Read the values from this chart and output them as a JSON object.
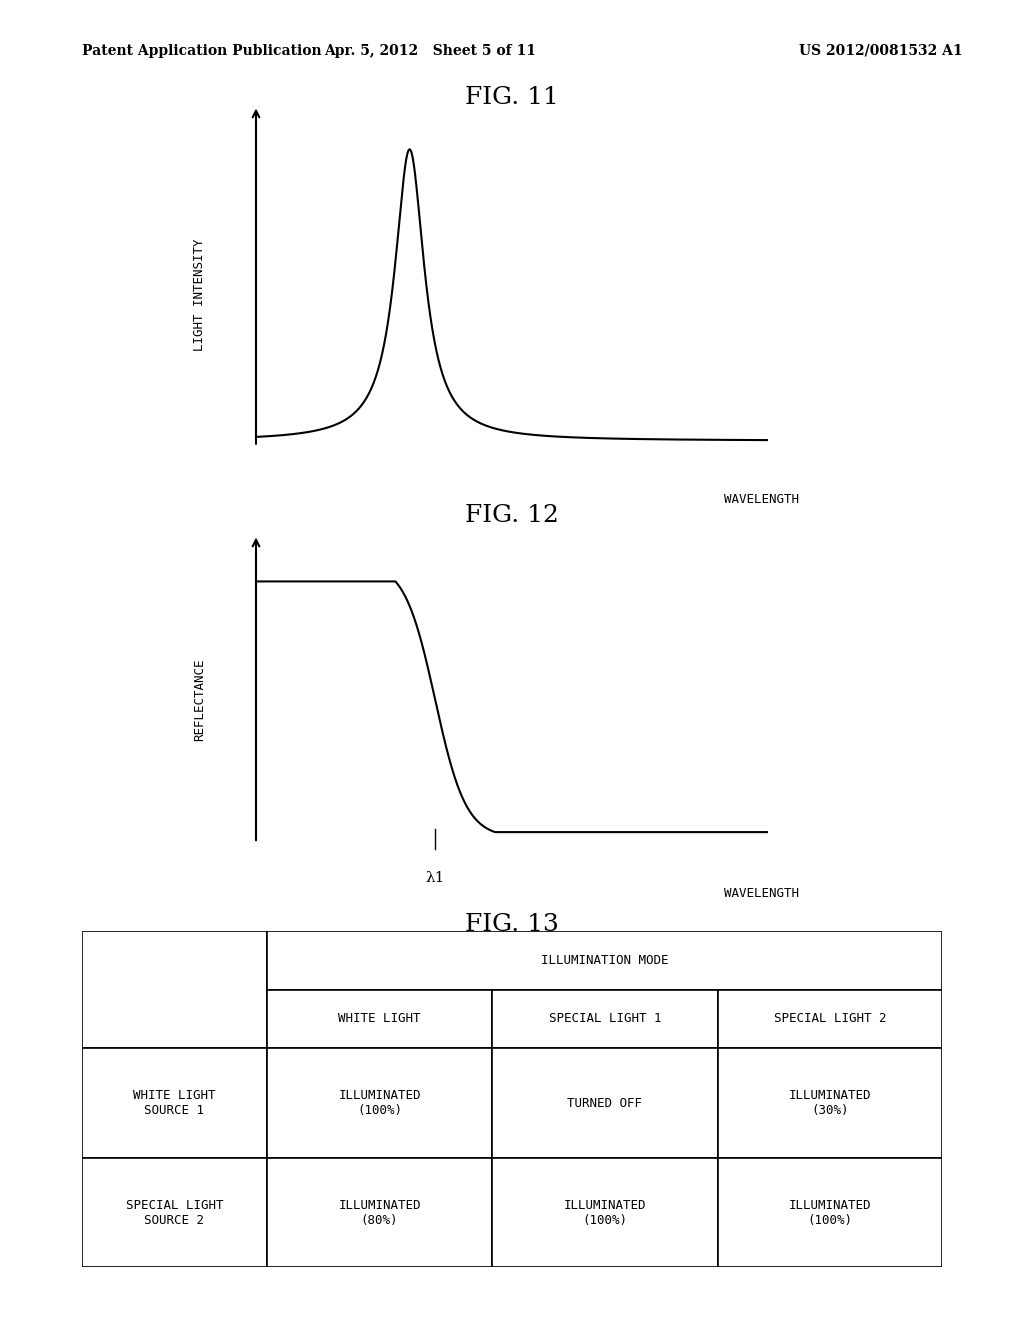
{
  "background_color": "#ffffff",
  "page_header_left": "Patent Application Publication",
  "page_header_center": "Apr. 5, 2012   Sheet 5 of 11",
  "page_header_right": "US 2012/0081532 A1",
  "fig11_title": "FIG. 11",
  "fig11_ylabel": "LIGHT INTENSITY",
  "fig11_xlabel": "WAVELENGTH",
  "fig12_title": "FIG. 12",
  "fig12_ylabel": "REFLECTANCE",
  "fig12_xlabel": "WAVELENGTH",
  "fig12_lambda_label": "λ1",
  "fig13_title": "FIG. 13",
  "table_header_merged": "ILLUMINATION MODE",
  "table_col_headers": [
    "WHITE LIGHT",
    "SPECIAL LIGHT 1",
    "SPECIAL LIGHT 2"
  ],
  "table_row_headers": [
    "WHITE LIGHT\nSOURCE 1",
    "SPECIAL LIGHT\nSOURCE 2"
  ],
  "table_data": [
    [
      "ILLUMINATED\n(100%)",
      "TURNED OFF",
      "ILLUMINATED\n(30%)"
    ],
    [
      "ILLUMINATED\n(80%)",
      "ILLUMINATED\n(100%)",
      "ILLUMINATED\n(100%)"
    ]
  ],
  "line_color": "#000000",
  "text_color": "#000000",
  "arrow_color": "#000000"
}
